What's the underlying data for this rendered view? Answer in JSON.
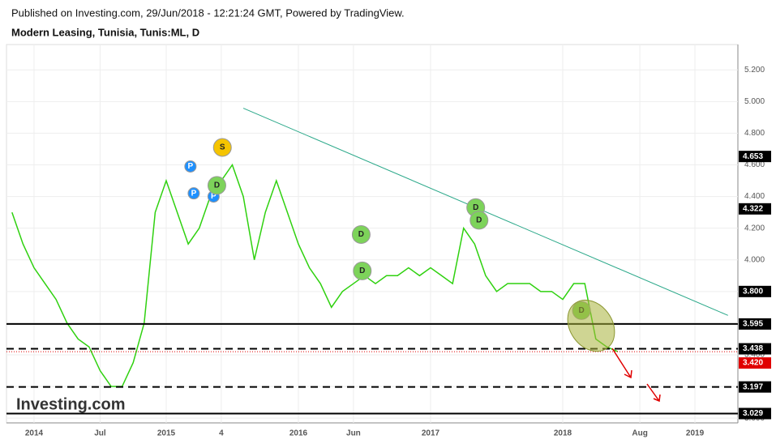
{
  "header": {
    "published": "Published on Investing.com, 29/Jun/2018 - 12:21:24 GMT, Powered by TradingView.",
    "instrument": "Modern Leasing, Tunisia, Tunis:ML, D"
  },
  "watermark": "Investing.com",
  "chart_data": {
    "type": "line",
    "color": "#2fd10f",
    "x": [
      -2,
      -1,
      0,
      1,
      2,
      3,
      4,
      5,
      6,
      7,
      8,
      9,
      10,
      11,
      12,
      13,
      14,
      15,
      16,
      17,
      18,
      19,
      20,
      21,
      22,
      23,
      24,
      25,
      26,
      27,
      28,
      29,
      30,
      31,
      32,
      33,
      34,
      35,
      36,
      37,
      38,
      39,
      40,
      41,
      42,
      43,
      44,
      45,
      46,
      47,
      48,
      49,
      50,
      51,
      52,
      53
    ],
    "values": [
      4.3,
      4.1,
      3.95,
      3.85,
      3.75,
      3.6,
      3.5,
      3.45,
      3.3,
      3.2,
      3.2,
      3.35,
      3.6,
      4.3,
      4.5,
      4.3,
      4.1,
      4.2,
      4.4,
      4.5,
      4.6,
      4.4,
      4.0,
      4.3,
      4.5,
      4.3,
      4.1,
      3.95,
      3.85,
      3.7,
      3.8,
      3.85,
      3.9,
      3.85,
      3.9,
      3.9,
      3.95,
      3.9,
      3.95,
      3.9,
      3.85,
      4.2,
      4.1,
      3.9,
      3.8,
      3.85,
      3.85,
      3.85,
      3.8,
      3.8,
      3.75,
      3.85,
      3.85,
      3.5,
      3.45,
      3.42
    ],
    "xlim": [
      -2.5,
      63.9
    ],
    "ylim": [
      2.97,
      5.36
    ],
    "xticks": [
      {
        "value": 0,
        "label": "2014"
      },
      {
        "value": 6,
        "label": "Jul"
      },
      {
        "value": 12,
        "label": "2015"
      },
      {
        "value": 17,
        "label": "4"
      },
      {
        "value": 24,
        "label": "2016"
      },
      {
        "value": 29,
        "label": "Jun"
      },
      {
        "value": 36,
        "label": "2017"
      },
      {
        "value": 48,
        "label": "2018"
      },
      {
        "value": 55,
        "label": "Aug"
      },
      {
        "value": 60,
        "label": "2019"
      }
    ],
    "yticks": [
      {
        "value": 3.0,
        "label": "3.000"
      },
      {
        "value": 3.2,
        "label": "3.200"
      },
      {
        "value": 3.4,
        "label": "3.400"
      },
      {
        "value": 3.6,
        "label": "3.600"
      },
      {
        "value": 3.8,
        "label": "3.800"
      },
      {
        "value": 4.0,
        "label": "4.000"
      },
      {
        "value": 4.2,
        "label": "4.200"
      },
      {
        "value": 4.4,
        "label": "4.400"
      },
      {
        "value": 4.6,
        "label": "4.600"
      },
      {
        "value": 4.8,
        "label": "4.800"
      },
      {
        "value": 5.0,
        "label": "5.000"
      },
      {
        "value": 5.2,
        "label": "5.200"
      }
    ],
    "grid": true,
    "levels": [
      {
        "value": 3.595,
        "label": "3.595",
        "style": "solid"
      },
      {
        "value": 3.438,
        "label": "3.438",
        "style": "dashed"
      },
      {
        "value": 3.197,
        "label": "3.197",
        "style": "dashed"
      },
      {
        "value": 3.029,
        "label": "3.029",
        "style": "solid"
      }
    ],
    "last_price": {
      "value": 3.42,
      "label": "3.420",
      "color": "#e00000"
    },
    "axis_labels": [
      {
        "value": 4.653,
        "label": "4.653"
      },
      {
        "value": 4.322,
        "label": "4.322"
      },
      {
        "value": 3.8,
        "label": "3.800"
      }
    ],
    "trendline": {
      "x": [
        19,
        63
      ],
      "values": [
        4.958,
        3.649
      ],
      "color": "#2aa889"
    },
    "events": [
      {
        "label": "P",
        "x": 14.2,
        "y": 4.59
      },
      {
        "label": "P",
        "x": 14.5,
        "y": 4.42
      },
      {
        "label": "P",
        "x": 16.3,
        "y": 4.4
      },
      {
        "label": "S",
        "x": 17.1,
        "y": 4.71
      },
      {
        "label": "D",
        "x": 16.6,
        "y": 4.47
      },
      {
        "label": "D",
        "x": 29.7,
        "y": 4.16
      },
      {
        "label": "D",
        "x": 29.8,
        "y": 3.93
      },
      {
        "label": "D",
        "x": 40.1,
        "y": 4.33
      },
      {
        "label": "D",
        "x": 40.4,
        "y": 4.25
      },
      {
        "label": "D",
        "x": 49.7,
        "y": 3.68
      }
    ]
  }
}
